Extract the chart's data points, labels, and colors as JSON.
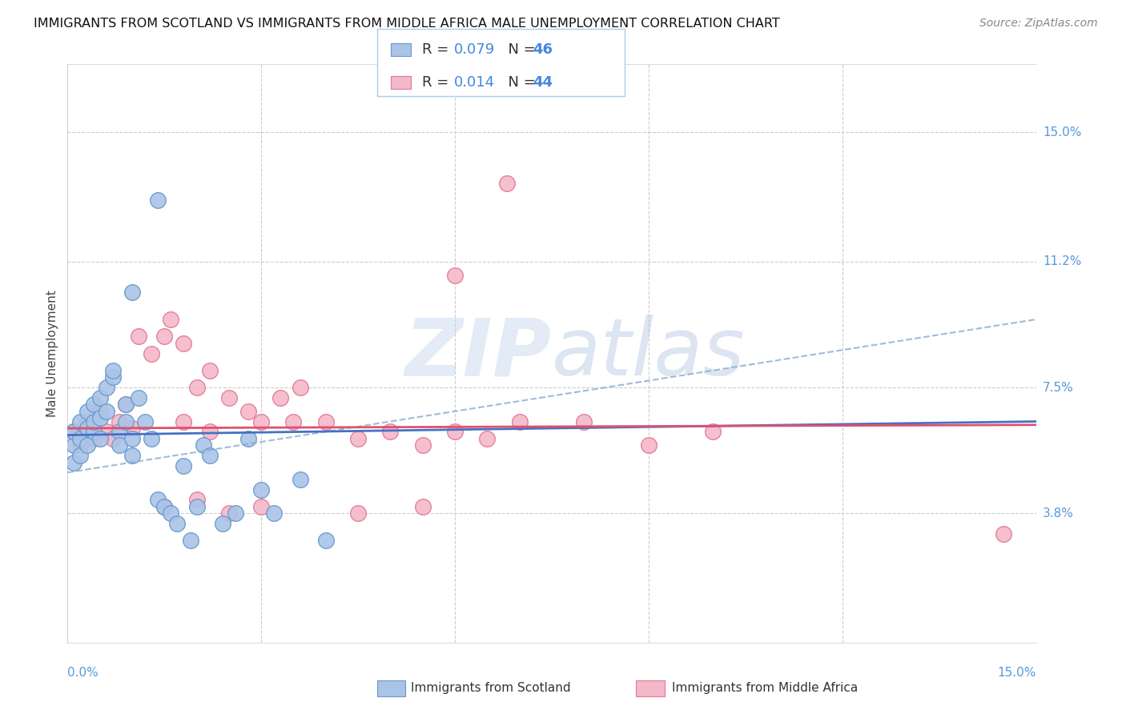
{
  "title": "IMMIGRANTS FROM SCOTLAND VS IMMIGRANTS FROM MIDDLE AFRICA MALE UNEMPLOYMENT CORRELATION CHART",
  "source": "Source: ZipAtlas.com",
  "ylabel": "Male Unemployment",
  "ytick_labels": [
    "15.0%",
    "11.2%",
    "7.5%",
    "3.8%"
  ],
  "ytick_values": [
    0.15,
    0.112,
    0.075,
    0.038
  ],
  "xtick_labels": [
    "0.0%",
    "15.0%"
  ],
  "xmin": 0.0,
  "xmax": 0.15,
  "ymin": 0.0,
  "ymax": 0.17,
  "scotland_color": "#aac4e8",
  "scotland_edge": "#6699cc",
  "middle_africa_color": "#f5b8c8",
  "middle_africa_edge": "#e07898",
  "legend_R1": "R = 0.079",
  "legend_N1": "N = 46",
  "legend_R2": "R = 0.014",
  "legend_N2": "N = 44",
  "scotland_line_color": "#4472c4",
  "africa_line_color": "#e05070",
  "dashed_line_color": "#88aacc",
  "watermark_zip": "ZIP",
  "watermark_atlas": "atlas",
  "watermark_color": "#c8d8ec",
  "background_color": "#ffffff",
  "grid_color": "#cccccc",
  "legend_border": "#aaccee",
  "scotland_x": [
    0.001,
    0.001,
    0.001,
    0.002,
    0.002,
    0.002,
    0.003,
    0.003,
    0.003,
    0.004,
    0.004,
    0.004,
    0.005,
    0.005,
    0.005,
    0.006,
    0.006,
    0.007,
    0.007,
    0.008,
    0.008,
    0.009,
    0.009,
    0.01,
    0.01,
    0.011,
    0.012,
    0.013,
    0.014,
    0.015,
    0.016,
    0.017,
    0.018,
    0.019,
    0.02,
    0.021,
    0.022,
    0.024,
    0.026,
    0.028,
    0.03,
    0.032,
    0.036,
    0.04,
    0.014,
    0.01
  ],
  "scotland_y": [
    0.058,
    0.062,
    0.053,
    0.065,
    0.06,
    0.055,
    0.063,
    0.058,
    0.068,
    0.062,
    0.07,
    0.065,
    0.06,
    0.072,
    0.066,
    0.075,
    0.068,
    0.078,
    0.08,
    0.062,
    0.058,
    0.065,
    0.07,
    0.06,
    0.055,
    0.072,
    0.065,
    0.06,
    0.042,
    0.04,
    0.038,
    0.035,
    0.052,
    0.03,
    0.04,
    0.058,
    0.055,
    0.035,
    0.038,
    0.06,
    0.045,
    0.038,
    0.048,
    0.03,
    0.13,
    0.103
  ],
  "africa_x": [
    0.001,
    0.002,
    0.003,
    0.004,
    0.005,
    0.006,
    0.007,
    0.008,
    0.009,
    0.01,
    0.011,
    0.013,
    0.015,
    0.016,
    0.018,
    0.02,
    0.022,
    0.025,
    0.028,
    0.03,
    0.033,
    0.036,
    0.04,
    0.045,
    0.05,
    0.055,
    0.06,
    0.065,
    0.07,
    0.08,
    0.09,
    0.1,
    0.06,
    0.035,
    0.03,
    0.025,
    0.015,
    0.02,
    0.045,
    0.055,
    0.018,
    0.022,
    0.145,
    0.068
  ],
  "africa_y": [
    0.062,
    0.058,
    0.065,
    0.06,
    0.068,
    0.062,
    0.06,
    0.065,
    0.07,
    0.063,
    0.09,
    0.085,
    0.09,
    0.095,
    0.088,
    0.075,
    0.08,
    0.072,
    0.068,
    0.065,
    0.072,
    0.075,
    0.065,
    0.06,
    0.062,
    0.058,
    0.062,
    0.06,
    0.065,
    0.065,
    0.058,
    0.062,
    0.108,
    0.065,
    0.04,
    0.038,
    0.04,
    0.042,
    0.038,
    0.04,
    0.065,
    0.062,
    0.032,
    0.135
  ],
  "scot_line_x": [
    0.0,
    0.15
  ],
  "scot_line_y": [
    0.061,
    0.065
  ],
  "africa_line_x": [
    0.0,
    0.15
  ],
  "africa_line_y": [
    0.063,
    0.064
  ],
  "dash_line_x": [
    0.0,
    0.15
  ],
  "dash_line_y": [
    0.05,
    0.095
  ]
}
